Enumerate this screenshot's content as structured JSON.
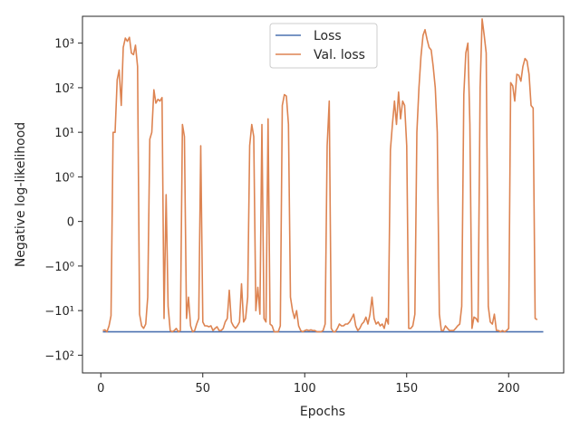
{
  "chart_data": {
    "type": "line",
    "title": "",
    "xlabel": "Epochs",
    "ylabel": "Negative log-likelihood",
    "yscale": "symlog",
    "xlim": [
      -9,
      227
    ],
    "ylim": [
      -250,
      4000
    ],
    "grid": false,
    "legend_placement": "top-center",
    "x_ticks": [
      {
        "value": 0,
        "label": "0"
      },
      {
        "value": 50,
        "label": "50"
      },
      {
        "value": 100,
        "label": "100"
      },
      {
        "value": 150,
        "label": "150"
      },
      {
        "value": 200,
        "label": "200"
      }
    ],
    "y_ticks": [
      {
        "value": 1000,
        "label": "10³"
      },
      {
        "value": 100,
        "label": "10²"
      },
      {
        "value": 10,
        "label": "10¹"
      },
      {
        "value": 1,
        "label": "10⁰"
      },
      {
        "value": 0,
        "label": "0"
      },
      {
        "value": -1,
        "label": "−10⁰"
      },
      {
        "value": -10,
        "label": "−10¹"
      },
      {
        "value": -100,
        "label": "−10²"
      }
    ],
    "series": [
      {
        "name": "Loss",
        "color": "#4c72b0",
        "points": [
          [
            1,
            -30
          ],
          [
            217,
            -30
          ]
        ]
      },
      {
        "name": "Val. loss",
        "color": "#dd8452",
        "points": [
          [
            1,
            -28
          ],
          [
            2,
            -27
          ],
          [
            3,
            -30
          ],
          [
            4,
            -22
          ],
          [
            5,
            -13
          ],
          [
            6,
            10
          ],
          [
            7,
            10
          ],
          [
            8,
            150
          ],
          [
            9,
            250
          ],
          [
            10,
            40
          ],
          [
            11,
            800
          ],
          [
            12,
            1300
          ],
          [
            13,
            1100
          ],
          [
            14,
            1350
          ],
          [
            15,
            600
          ],
          [
            16,
            550
          ],
          [
            17,
            900
          ],
          [
            18,
            300
          ],
          [
            19,
            -12
          ],
          [
            20,
            -22
          ],
          [
            21,
            -25
          ],
          [
            22,
            -20
          ],
          [
            23,
            -5
          ],
          [
            24,
            7
          ],
          [
            25,
            10
          ],
          [
            26,
            90
          ],
          [
            27,
            45
          ],
          [
            28,
            55
          ],
          [
            29,
            50
          ],
          [
            30,
            60
          ],
          [
            31,
            -15
          ],
          [
            32,
            0.6
          ],
          [
            33,
            -8
          ],
          [
            34,
            -28
          ],
          [
            35,
            -30
          ],
          [
            36,
            -28
          ],
          [
            37,
            -25
          ],
          [
            38,
            -30
          ],
          [
            39,
            -28
          ],
          [
            40,
            15
          ],
          [
            41,
            8
          ],
          [
            42,
            -15
          ],
          [
            43,
            -5
          ],
          [
            44,
            -22
          ],
          [
            45,
            -30
          ],
          [
            46,
            -28
          ],
          [
            47,
            -20
          ],
          [
            48,
            -15
          ],
          [
            49,
            5
          ],
          [
            50,
            -18
          ],
          [
            51,
            -22
          ],
          [
            52,
            -22
          ],
          [
            53,
            -23
          ],
          [
            54,
            -22
          ],
          [
            55,
            -28
          ],
          [
            56,
            -25
          ],
          [
            57,
            -23
          ],
          [
            58,
            -28
          ],
          [
            59,
            -28
          ],
          [
            60,
            -25
          ],
          [
            61,
            -18
          ],
          [
            62,
            -15
          ],
          [
            63,
            -3.5
          ],
          [
            64,
            -18
          ],
          [
            65,
            -22
          ],
          [
            66,
            -25
          ],
          [
            67,
            -22
          ],
          [
            68,
            -18
          ],
          [
            69,
            -2.5
          ],
          [
            70,
            -18
          ],
          [
            71,
            -15
          ],
          [
            72,
            -5
          ],
          [
            73,
            5
          ],
          [
            74,
            15
          ],
          [
            75,
            8
          ],
          [
            76,
            -10
          ],
          [
            77,
            -3
          ],
          [
            78,
            -12
          ],
          [
            79,
            15
          ],
          [
            80,
            -15
          ],
          [
            81,
            -18
          ],
          [
            82,
            20
          ],
          [
            83,
            -20
          ],
          [
            84,
            -22
          ],
          [
            85,
            -30
          ],
          [
            86,
            -30
          ],
          [
            87,
            -30
          ],
          [
            88,
            -22
          ],
          [
            89,
            40
          ],
          [
            90,
            70
          ],
          [
            91,
            65
          ],
          [
            92,
            15
          ],
          [
            93,
            -5
          ],
          [
            94,
            -10
          ],
          [
            95,
            -15
          ],
          [
            96,
            -10
          ],
          [
            97,
            -22
          ],
          [
            98,
            -28
          ],
          [
            99,
            -30
          ],
          [
            100,
            -28
          ],
          [
            101,
            -27
          ],
          [
            102,
            -28
          ],
          [
            103,
            -27
          ],
          [
            104,
            -28
          ],
          [
            105,
            -28
          ],
          [
            106,
            -30
          ],
          [
            107,
            -30
          ],
          [
            108,
            -30
          ],
          [
            109,
            -28
          ],
          [
            110,
            -20
          ],
          [
            111,
            5
          ],
          [
            112,
            50
          ],
          [
            113,
            -25
          ],
          [
            114,
            -30
          ],
          [
            115,
            -30
          ],
          [
            116,
            -25
          ],
          [
            117,
            -20
          ],
          [
            118,
            -22
          ],
          [
            119,
            -22
          ],
          [
            120,
            -20
          ],
          [
            121,
            -20
          ],
          [
            122,
            -18
          ],
          [
            123,
            -15
          ],
          [
            124,
            -12
          ],
          [
            125,
            -22
          ],
          [
            126,
            -28
          ],
          [
            127,
            -25
          ],
          [
            128,
            -20
          ],
          [
            129,
            -18
          ],
          [
            130,
            -14
          ],
          [
            131,
            -20
          ],
          [
            132,
            -12
          ],
          [
            133,
            -5
          ],
          [
            134,
            -15
          ],
          [
            135,
            -20
          ],
          [
            136,
            -18
          ],
          [
            137,
            -22
          ],
          [
            138,
            -20
          ],
          [
            139,
            -25
          ],
          [
            140,
            -15
          ],
          [
            141,
            -20
          ],
          [
            142,
            4
          ],
          [
            143,
            15
          ],
          [
            144,
            50
          ],
          [
            145,
            15
          ],
          [
            146,
            80
          ],
          [
            147,
            20
          ],
          [
            148,
            50
          ],
          [
            149,
            40
          ],
          [
            150,
            5
          ],
          [
            151,
            -25
          ],
          [
            152,
            -25
          ],
          [
            153,
            -22
          ],
          [
            154,
            -12
          ],
          [
            155,
            10
          ],
          [
            156,
            100
          ],
          [
            157,
            500
          ],
          [
            158,
            1500
          ],
          [
            159,
            2000
          ],
          [
            160,
            1200
          ],
          [
            161,
            800
          ],
          [
            162,
            700
          ],
          [
            163,
            300
          ],
          [
            164,
            100
          ],
          [
            165,
            10
          ],
          [
            166,
            -12
          ],
          [
            167,
            -28
          ],
          [
            168,
            -28
          ],
          [
            169,
            -22
          ],
          [
            170,
            -25
          ],
          [
            171,
            -28
          ],
          [
            172,
            -28
          ],
          [
            173,
            -28
          ],
          [
            174,
            -25
          ],
          [
            175,
            -22
          ],
          [
            176,
            -20
          ],
          [
            177,
            -8
          ],
          [
            178,
            70
          ],
          [
            179,
            600
          ],
          [
            180,
            1000
          ],
          [
            181,
            15
          ],
          [
            182,
            -25
          ],
          [
            183,
            -14
          ],
          [
            184,
            -15
          ],
          [
            185,
            -18
          ],
          [
            186,
            100
          ],
          [
            187,
            3500
          ],
          [
            188,
            1500
          ],
          [
            189,
            600
          ],
          [
            190,
            -8
          ],
          [
            191,
            -18
          ],
          [
            192,
            -20
          ],
          [
            193,
            -12
          ],
          [
            194,
            -28
          ],
          [
            195,
            -28
          ],
          [
            196,
            -30
          ],
          [
            197,
            -28
          ],
          [
            198,
            -30
          ],
          [
            199,
            -28
          ],
          [
            200,
            -25
          ],
          [
            201,
            130
          ],
          [
            202,
            110
          ],
          [
            203,
            50
          ],
          [
            204,
            200
          ],
          [
            205,
            190
          ],
          [
            206,
            140
          ],
          [
            207,
            300
          ],
          [
            208,
            450
          ],
          [
            209,
            400
          ],
          [
            210,
            200
          ],
          [
            211,
            40
          ],
          [
            212,
            35
          ],
          [
            213,
            -15
          ],
          [
            214,
            -16
          ]
        ]
      }
    ]
  }
}
